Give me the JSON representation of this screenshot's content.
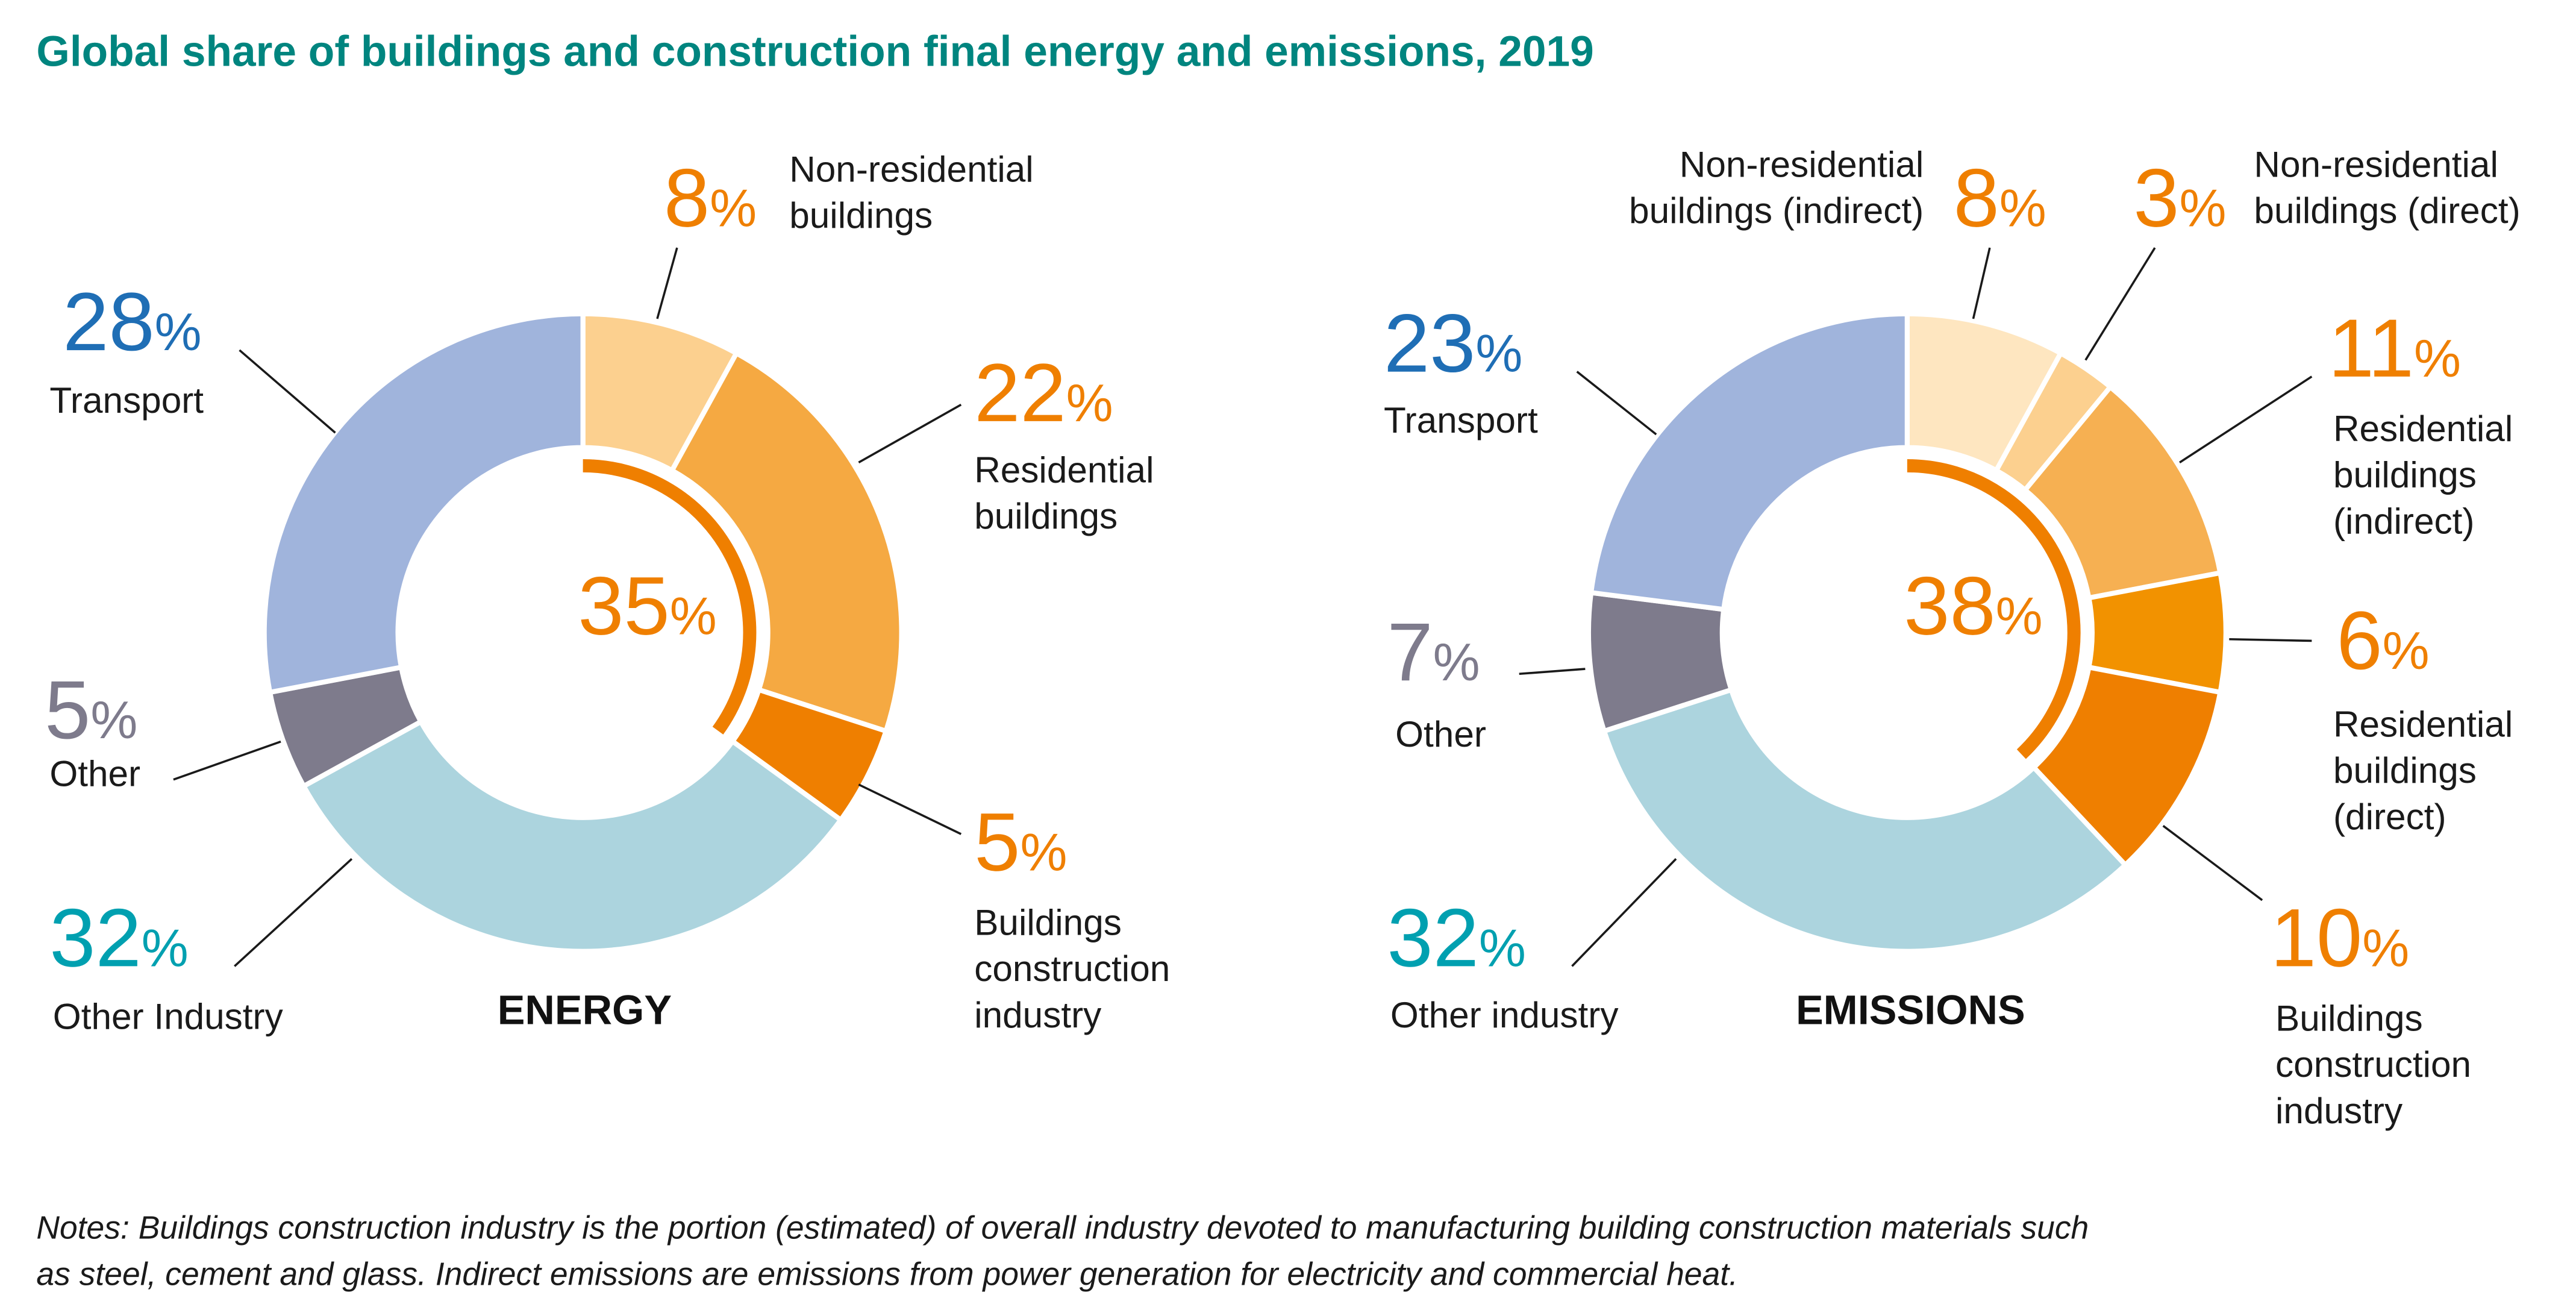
{
  "title": "Global share of buildings and construction final energy and emissions, 2019",
  "notes": [
    "Notes: Buildings construction industry is the portion (estimated) of overall industry devoted to manufacturing building construction materials such",
    "as steel, cement and glass. Indirect emissions are emissions from power generation for electricity and commercial heat."
  ],
  "colors": {
    "title": "#00857F",
    "transport": "#1F6EB5",
    "other": "#7E7B8C",
    "other_industry": "#00A0B0",
    "buildings": "#EF7F00"
  },
  "chart_data": [
    {
      "type": "pie",
      "title": "ENERGY",
      "buildings_total": 35,
      "slices": [
        {
          "label": [
            "Non-residential",
            "buildings"
          ],
          "value": 8,
          "color": "#FCD08F"
        },
        {
          "label": [
            "Residential",
            "buildings"
          ],
          "value": 22,
          "color": "#F5A942"
        },
        {
          "label": [
            "Buildings",
            "construction",
            "industry"
          ],
          "value": 5,
          "color": "#EF7F00"
        },
        {
          "label": [
            "Other Industry"
          ],
          "value": 32,
          "color": "#ACD4DE"
        },
        {
          "label": [
            "Other"
          ],
          "value": 5,
          "color": "#7E7B8C"
        },
        {
          "label": [
            "Transport"
          ],
          "value": 28,
          "color": "#A0B4DC"
        }
      ]
    },
    {
      "type": "pie",
      "title": "EMISSIONS",
      "buildings_total": 38,
      "slices": [
        {
          "label": [
            "Non-residential",
            "buildings (indirect)"
          ],
          "value": 8,
          "color": "#FEE6C0"
        },
        {
          "label": [
            "Non-residential",
            "buildings (direct)"
          ],
          "value": 3,
          "color": "#FCD08F"
        },
        {
          "label": [
            "Residential",
            "buildings",
            "(indirect)"
          ],
          "value": 11,
          "color": "#F6B052"
        },
        {
          "label": [
            "Residential",
            "buildings",
            "(direct)"
          ],
          "value": 6,
          "color": "#F29200"
        },
        {
          "label": [
            "Buildings",
            "construction",
            "industry"
          ],
          "value": 10,
          "color": "#EF7F00"
        },
        {
          "label": [
            "Other industry"
          ],
          "value": 32,
          "color": "#ACD4DE"
        },
        {
          "label": [
            "Other"
          ],
          "value": 7,
          "color": "#7E7B8C"
        },
        {
          "label": [
            "Transport"
          ],
          "value": 23,
          "color": "#A0B4DC"
        }
      ]
    }
  ]
}
